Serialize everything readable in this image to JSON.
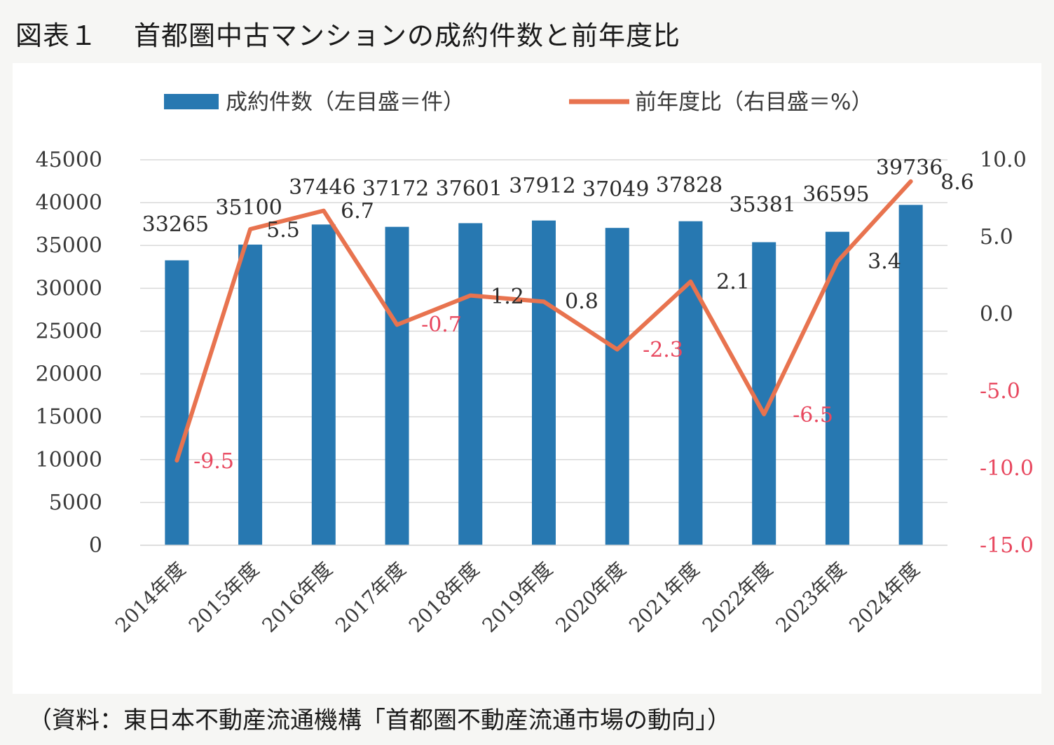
{
  "figure": {
    "number": "図表１",
    "title": "首都圏中古マンションの成約件数と前年度比",
    "source": "（資料：東日本不動産流通機構「首都圏不動産流通市場の動向」）"
  },
  "colors": {
    "bar": "#2778b1",
    "line": "#e8734f",
    "negative": "#e8485f",
    "grid": "#d9d9d9",
    "text": "#3a3a3a"
  },
  "chart_data": {
    "type": "bar",
    "combo": "bar + line (dual axis)",
    "categories": [
      "2014年度",
      "2015年度",
      "2016年度",
      "2017年度",
      "2018年度",
      "2019年度",
      "2020年度",
      "2021年度",
      "2022年度",
      "2023年度",
      "2024年度"
    ],
    "series": [
      {
        "name": "成約件数（左目盛＝件）",
        "type": "bar",
        "axis": "left",
        "values": [
          33265,
          35100,
          37446,
          37172,
          37601,
          37912,
          37049,
          37828,
          35381,
          36595,
          39736
        ],
        "labels": [
          "33265",
          "35100",
          "37446",
          "37172",
          "37601",
          "37912",
          "37049",
          "37828",
          "35381",
          "36595",
          "39736"
        ]
      },
      {
        "name": "前年度比（右目盛＝%）",
        "type": "line",
        "axis": "right",
        "values": [
          -9.5,
          5.5,
          6.7,
          -0.7,
          1.2,
          0.8,
          -2.3,
          2.1,
          -6.5,
          3.4,
          8.6
        ],
        "labels": [
          "-9.5",
          "5.5",
          "6.7",
          "-0.7",
          "1.2",
          "0.8",
          "-2.3",
          "2.1",
          "-6.5",
          "3.4",
          "8.6"
        ]
      }
    ],
    "y_left": {
      "range": [
        0,
        45000
      ],
      "ticks": [
        "0",
        "5000",
        "10000",
        "15000",
        "20000",
        "25000",
        "30000",
        "35000",
        "40000",
        "45000"
      ]
    },
    "y_right": {
      "range": [
        -15,
        10
      ],
      "ticks": [
        "-15.0",
        "-10.0",
        "-5.0",
        "0.0",
        "5.0",
        "10.0"
      ]
    },
    "grid": true,
    "legend_position": "top"
  }
}
